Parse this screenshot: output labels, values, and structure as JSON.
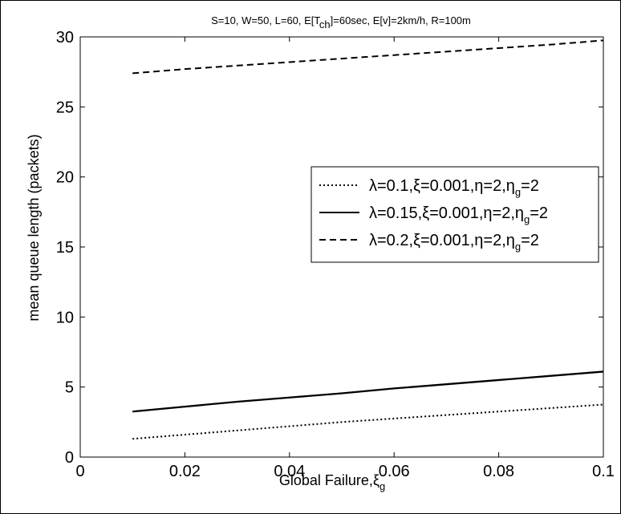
{
  "chart_data": {
    "type": "line",
    "title_parts": {
      "before": "S=10, W=50, L=60, E[T",
      "sub": "ch",
      "after": "]=60sec, E[v]=2km/h, R=100m"
    },
    "xlabel_parts": {
      "before": "Global Failure,",
      "symbol": "ξ",
      "sub": "g"
    },
    "ylabel": "mean queue length (packets)",
    "xlim": [
      0,
      0.1
    ],
    "ylim": [
      0,
      30
    ],
    "x_ticks": [
      "0",
      "0.02",
      "0.04",
      "0.06",
      "0.08",
      "0.1"
    ],
    "y_ticks": [
      "0",
      "5",
      "10",
      "15",
      "20",
      "25",
      "30"
    ],
    "grid": false,
    "legend_position": "center-right",
    "series": [
      {
        "name_parts": {
          "before": "λ=0.1,ξ=0.001,η=2,η",
          "sub": "g",
          "after": "=2"
        },
        "style": "dotted",
        "x": [
          0.01,
          0.02,
          0.03,
          0.04,
          0.05,
          0.06,
          0.07,
          0.08,
          0.09,
          0.1
        ],
        "y": [
          1.3,
          1.6,
          1.9,
          2.2,
          2.5,
          2.75,
          3.0,
          3.25,
          3.5,
          3.75
        ]
      },
      {
        "name_parts": {
          "before": "λ=0.15,ξ=0.001,η=2,η",
          "sub": "g",
          "after": "=2"
        },
        "style": "solid",
        "x": [
          0.01,
          0.02,
          0.03,
          0.04,
          0.05,
          0.06,
          0.07,
          0.08,
          0.09,
          0.1
        ],
        "y": [
          3.25,
          3.6,
          3.95,
          4.25,
          4.55,
          4.9,
          5.2,
          5.5,
          5.8,
          6.1
        ]
      },
      {
        "name_parts": {
          "before": "λ=0.2,ξ=0.001,η=2,η",
          "sub": "g",
          "after": "=2"
        },
        "style": "dashed",
        "x": [
          0.01,
          0.02,
          0.03,
          0.04,
          0.05,
          0.06,
          0.07,
          0.08,
          0.09,
          0.1
        ],
        "y": [
          27.4,
          27.7,
          27.95,
          28.2,
          28.45,
          28.7,
          28.95,
          29.2,
          29.45,
          29.75
        ]
      }
    ]
  }
}
